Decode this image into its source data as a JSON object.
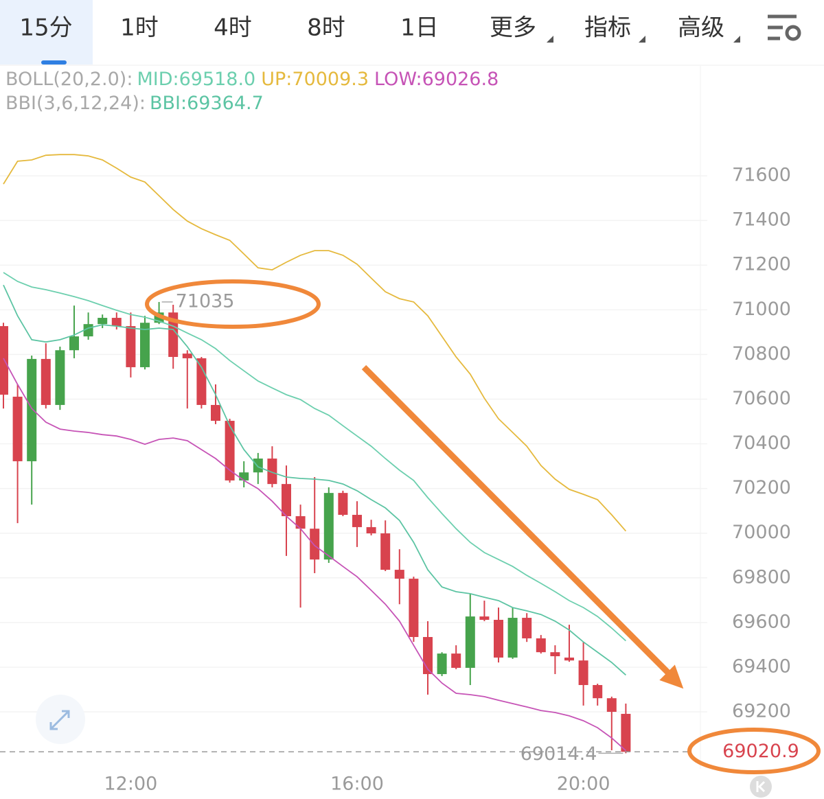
{
  "tabs": [
    "15分",
    "1时",
    "4时",
    "8时",
    "1日",
    "更多",
    "指标",
    "高级"
  ],
  "chart_data": {
    "type": "candlestick",
    "indicator_groups": [
      "BOLL(20,2.0):",
      "BBI(3,6,12,24):"
    ],
    "categories": [
      null,
      null,
      null,
      null,
      null,
      null,
      null,
      null,
      null,
      "12:00",
      null,
      null,
      null,
      null,
      null,
      null,
      null,
      null,
      null,
      null,
      null,
      null,
      null,
      null,
      null,
      "16:00",
      null,
      null,
      null,
      null,
      null,
      null,
      null,
      null,
      null,
      null,
      null,
      null,
      null,
      null,
      null,
      "20:00",
      null,
      null,
      null
    ],
    "open": [
      70927,
      70611,
      70322,
      70780,
      70574,
      70819,
      70881,
      70936,
      70964,
      70927,
      70743,
      70942,
      70988,
      70804,
      70783,
      70574,
      70503,
      70236,
      70272,
      70334,
      70220,
      70076,
      70020,
      69882,
      70180,
      70082,
      70027,
      69999,
      69836,
      69796,
      69535,
      69369,
      69461,
      69397,
      69627,
      69612,
      69443,
      69621,
      69529,
      69467,
      69443,
      69430,
      69320,
      69261,
      69191
    ],
    "high": [
      70942,
      70666,
      70795,
      70850,
      70835,
      71019,
      70988,
      70979,
      70988,
      70988,
      70973,
      71035,
      71022.7,
      70819,
      70789,
      70666,
      70512,
      70322,
      70359,
      70389,
      70303,
      70128,
      70251,
      70205,
      70190,
      70143,
      70060,
      70057,
      69928,
      69805,
      69606,
      69467,
      69498,
      69729,
      69698,
      69667,
      69667,
      69642,
      69544,
      69498,
      69590,
      69513,
      69326,
      69268,
      69237
    ],
    "low": [
      70558,
      70045,
      70128,
      70558,
      70552,
      70783,
      70866,
      70918,
      70912,
      70697,
      70733,
      70936,
      70736,
      70558,
      70558,
      70488,
      70226,
      70205,
      70220,
      70205,
      69898,
      69667,
      69821,
      69867,
      70076,
      69938,
      69990,
      69830,
      69682,
      69513,
      69277,
      69360,
      69391,
      69320,
      69606,
      69421,
      69437,
      69513,
      69461,
      69369,
      69424,
      69228,
      69228,
      69028,
      69014.4
    ],
    "close": [
      70620,
      70322,
      70780,
      70574,
      70819,
      70881,
      70936,
      70964,
      70927,
      70743,
      70942,
      70988,
      70789,
      70783,
      70574,
      70503,
      70236,
      70272,
      70334,
      70220,
      70076,
      70020,
      69882,
      70180,
      70082,
      70027,
      69999,
      69836,
      69796,
      69535,
      69369,
      69461,
      69397,
      69627,
      69612,
      69443,
      69621,
      69529,
      69467,
      69449,
      69430,
      69320,
      69261,
      69200,
      69020.9
    ],
    "up_color": "#46a34c",
    "down_color": "#d8434e",
    "series": [
      {
        "name": "MID:69518.0",
        "group": 0,
        "color": "#6ccfae",
        "values": [
          71167,
          71127,
          71102,
          71090,
          71075,
          71059,
          71041,
          71019,
          70998,
          70979,
          70967,
          70949,
          70927,
          70896,
          70866,
          70826,
          70773,
          70727,
          70681,
          70650,
          70620,
          70598,
          70558,
          70528,
          70481,
          70435,
          70389,
          70334,
          70282,
          70236,
          70159,
          70088,
          70020,
          69959,
          69913,
          69882,
          69851,
          69811,
          69775,
          69738,
          69698,
          69667,
          69627,
          69575,
          69518
        ]
      },
      {
        "name": "UP:70009.3",
        "group": 0,
        "color": "#e5b93d",
        "values": [
          71563,
          71665,
          71671,
          71692,
          71695,
          71695,
          71689,
          71671,
          71634,
          71594,
          71572,
          71511,
          71449,
          71397,
          71363,
          71336,
          71311,
          71250,
          71188,
          71179,
          71213,
          71244,
          71265,
          71265,
          71244,
          71204,
          71142,
          71081,
          71050,
          71035,
          70973,
          70881,
          70789,
          70712,
          70604,
          70512,
          70451,
          70389,
          70303,
          70242,
          70196,
          70174,
          70150,
          70082,
          70009.3
        ]
      },
      {
        "name": "LOW:69026.8",
        "group": 0,
        "color": "#c653b6",
        "values": [
          70783,
          70666,
          70558,
          70497,
          70466,
          70457,
          70451,
          70441,
          70435,
          70420,
          70398,
          70420,
          70426,
          70414,
          70374,
          70334,
          70282,
          70236,
          70199,
          70143,
          70076,
          70020,
          69944,
          69898,
          69851,
          69805,
          69744,
          69682,
          69606,
          69498,
          69391,
          69329,
          69283,
          69277,
          69268,
          69252,
          69237,
          69222,
          69206,
          69197,
          69182,
          69160,
          69129,
          69083,
          69026.8
        ]
      },
      {
        "name": "BBI:69364.7",
        "group": 1,
        "color": "#5cc4a3",
        "values": [
          71111,
          70973,
          70866,
          70856,
          70866,
          70887,
          70918,
          70933,
          70927,
          70918,
          70912,
          70918,
          70912,
          70835,
          70743,
          70620,
          70481,
          70374,
          70297,
          70272,
          70251,
          70245,
          70242,
          70236,
          70220,
          70190,
          70150,
          70113,
          70057,
          69959,
          69836,
          69759,
          69738,
          69729,
          69713,
          69698,
          69667,
          69652,
          69636,
          69606,
          69566,
          69513,
          69467,
          69421,
          69364.7
        ]
      }
    ],
    "ylim": [
      68945,
      72092
    ],
    "yticks": [
      69200,
      69400,
      69600,
      69800,
      70000,
      70200,
      70400,
      70600,
      70800,
      71000,
      71200,
      71400,
      71600
    ],
    "grid": true
  }
}
